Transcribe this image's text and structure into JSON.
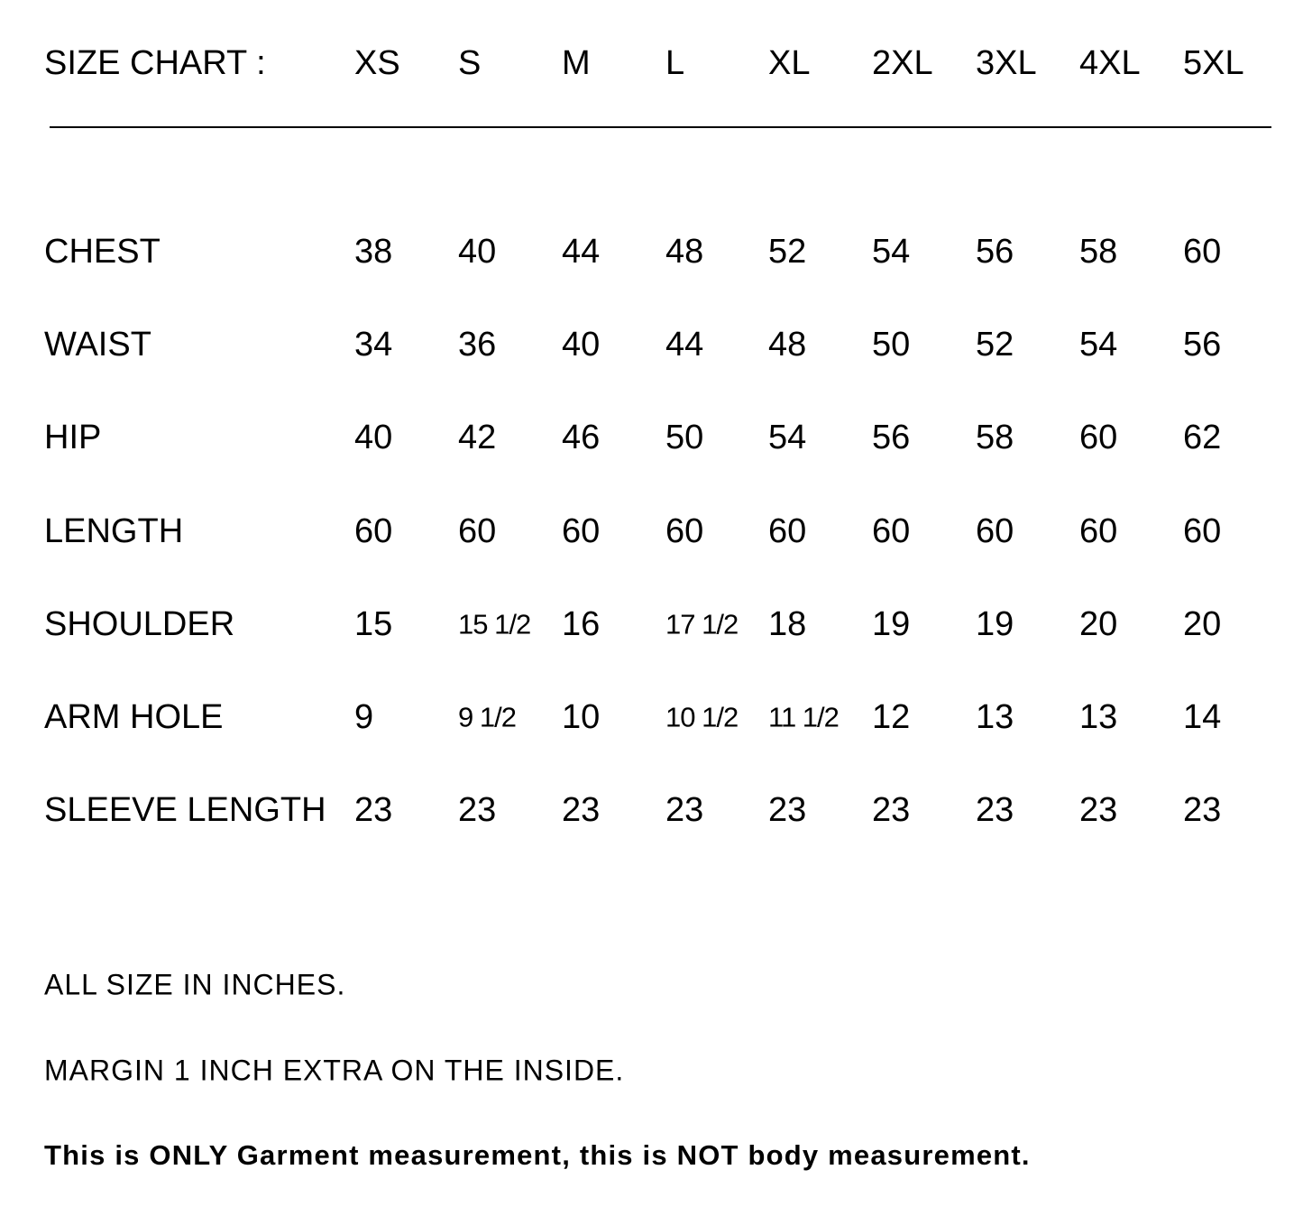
{
  "title": "SIZE CHART :",
  "sizes": [
    "XS",
    "S",
    "M",
    "L",
    "XL",
    "2XL",
    "3XL",
    "4XL",
    "5XL"
  ],
  "rows": [
    {
      "label": "CHEST",
      "values": [
        "38",
        "40",
        "44",
        "48",
        "52",
        "54",
        "56",
        "58",
        "60"
      ]
    },
    {
      "label": "WAIST",
      "values": [
        "34",
        "36",
        "40",
        "44",
        "48",
        "50",
        "52",
        "54",
        "56"
      ]
    },
    {
      "label": "HIP",
      "values": [
        "40",
        "42",
        "46",
        "50",
        "54",
        "56",
        "58",
        "60",
        "62"
      ]
    },
    {
      "label": "LENGTH",
      "values": [
        "60",
        "60",
        "60",
        "60",
        "60",
        "60",
        "60",
        "60",
        "60"
      ]
    },
    {
      "label": "SHOULDER",
      "values": [
        "15",
        "15 1/2",
        "16",
        "17 1/2",
        "18",
        "19",
        "19",
        "20",
        "20"
      ]
    },
    {
      "label": "ARM HOLE",
      "values": [
        "9",
        "9 1/2",
        "10",
        "10 1/2",
        "11 1/2",
        "12",
        "13",
        "13",
        "14"
      ]
    },
    {
      "label": "SLEEVE LENGTH",
      "values": [
        "23",
        "23",
        "23",
        "23",
        "23",
        "23",
        "23",
        "23",
        "23"
      ]
    }
  ],
  "notes": {
    "units": "ALL SIZE IN INCHES.",
    "margin": "MARGIN 1 INCH EXTRA ON THE INSIDE.",
    "disclaimer": "This is ONLY Garment measurement, this is NOT body measurement."
  }
}
